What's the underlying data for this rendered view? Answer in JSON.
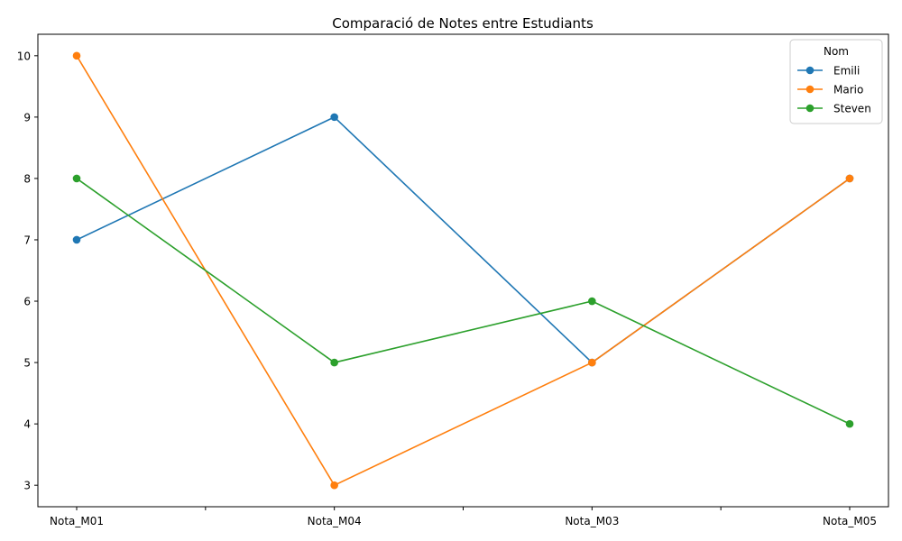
{
  "chart_data": {
    "type": "line",
    "title": "Comparació de Notes entre Estudiants",
    "xlabel": "",
    "ylabel": "",
    "categories": [
      "Nota_M01",
      "Nota_M04",
      "Nota_M03",
      "Nota_M05"
    ],
    "ylim": [
      2.65,
      10.35
    ],
    "yticks": [
      3,
      4,
      5,
      6,
      7,
      8,
      9,
      10
    ],
    "grid": false,
    "legend": {
      "title": "Nom",
      "placement": "top-right"
    },
    "series": [
      {
        "name": "Emili",
        "color": "#1f77b4",
        "values": [
          7,
          9,
          5,
          8
        ]
      },
      {
        "name": "Mario",
        "color": "#ff7f0e",
        "values": [
          10,
          3,
          5,
          8
        ]
      },
      {
        "name": "Steven",
        "color": "#2ca02c",
        "values": [
          8,
          5,
          6,
          4
        ]
      }
    ]
  }
}
